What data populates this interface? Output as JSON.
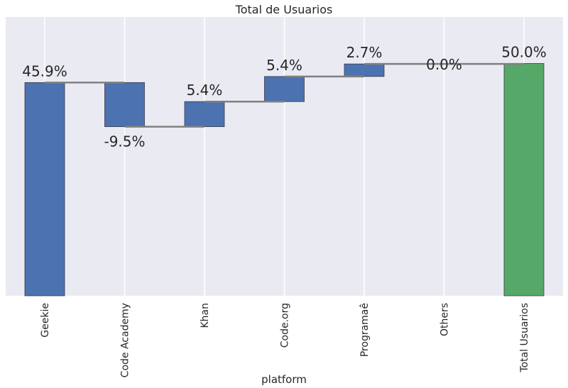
{
  "chart_data": {
    "type": "bar",
    "title": "Total de Usuarios",
    "xlabel": "platform",
    "ylabel": "",
    "categories": [
      "Geekie",
      "Code Academy",
      "Khan",
      "Code.org",
      "Programaê",
      "Others",
      "Total Usuarios"
    ],
    "values": [
      45.9,
      -9.5,
      5.4,
      5.4,
      2.7,
      0.0,
      50.0
    ],
    "data_labels": [
      "45.9%",
      "-9.5%",
      "5.4%",
      "5.4%",
      "2.7%",
      "0.0%",
      "50.0%"
    ],
    "ylim": [
      0,
      60
    ],
    "grid": true,
    "colors": {
      "background": "#eaeaf2",
      "step_bar": "#4c72b0",
      "total_bar": "#55a868",
      "connector": "#808080",
      "grid": "#ffffff"
    }
  }
}
